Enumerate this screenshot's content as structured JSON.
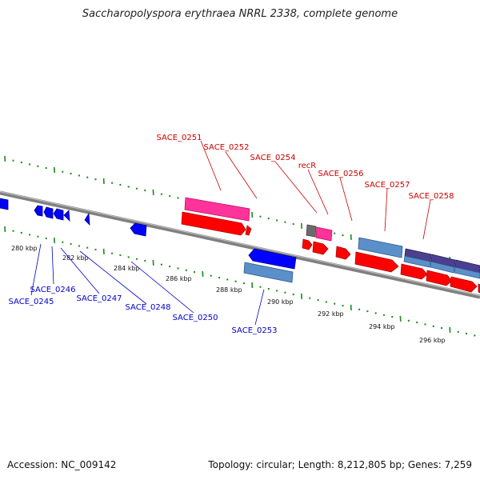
{
  "title": "Saccharopolyspora erythraea NRRL 2338, complete genome",
  "footer": {
    "accession": "Accession: NC_009142",
    "summary": "Topology: circular; Length: 8,212,805 bp; Genes: 7,259"
  },
  "colors": {
    "backbone": "#808080",
    "tick": "#1a8a1a",
    "forward_gene": "#ff0000",
    "reverse_gene": "#0000ff",
    "forward_label": "#cc0000",
    "reverse_label": "#0000cc",
    "pink": "#ff3399",
    "steelblue": "#5b8fc9",
    "purple": "#4b3f8f",
    "gray": "#777777"
  },
  "scale_labels": [
    "280 kbp",
    "282 kbp",
    "284 kbp",
    "286 kbp",
    "288 kbp",
    "290 kbp",
    "292 kbp",
    "294 kbp",
    "296 kbp"
  ],
  "forward_labels": [
    "SACE_0251",
    "SACE_0252",
    "SACE_0254",
    "recR",
    "SACE_0256",
    "SACE_0257",
    "SACE_0258"
  ],
  "reverse_labels": [
    "SACE_0245",
    "SACE_0246",
    "SACE_0247",
    "SACE_0248",
    "SACE_0250",
    "SACE_0253"
  ]
}
